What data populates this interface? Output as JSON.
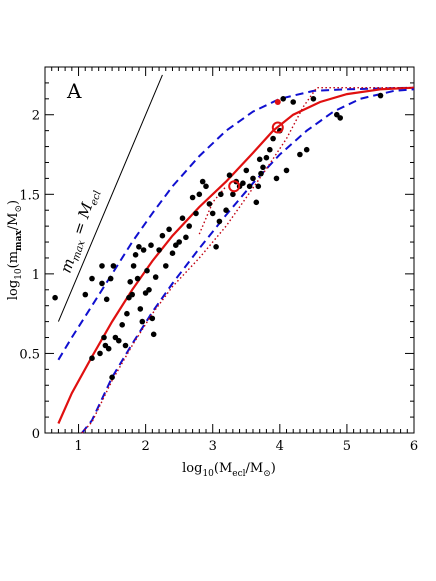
{
  "chart_data": {
    "type": "scatter",
    "panel_label": "A",
    "xlabel": {
      "pre": "log",
      "pre_sub": "10",
      "mid": "(M",
      "mid_sub": "ecl",
      "post": "/M",
      "post_sub": "⊙",
      "end": ")"
    },
    "ylabel": {
      "pre": "log",
      "pre_sub": "10",
      "mid": "(m",
      "mid_sub": "max",
      "post": "/M",
      "post_sub": "⊙",
      "end": ")"
    },
    "xlim": [
      0.5,
      6
    ],
    "ylim": [
      0,
      2.3
    ],
    "x_ticks": [
      1,
      2,
      3,
      4,
      5,
      6
    ],
    "y_ticks": [
      0,
      0.5,
      1,
      1.5,
      2
    ],
    "x_tick_labels": [
      "1",
      "2",
      "3",
      "4",
      "5",
      "6"
    ],
    "y_tick_labels": [
      "0",
      "0.5",
      "1",
      "1.5",
      "2"
    ],
    "reference_line": {
      "label": {
        "m": "m",
        "m_sub": "max",
        "eq": " = ",
        "M": "M",
        "M_sub": "ecl"
      },
      "points": [
        [
          0.7,
          0.7
        ],
        [
          2.25,
          2.25
        ]
      ],
      "color": "#000000"
    },
    "curves": [
      {
        "id": "upper-dashed",
        "style": "dashed",
        "color": "#1010d0",
        "points": [
          [
            0.7,
            0.46
          ],
          [
            0.9,
            0.6
          ],
          [
            1.2,
            0.8
          ],
          [
            1.5,
            1.0
          ],
          [
            1.8,
            1.2
          ],
          [
            2.1,
            1.38
          ],
          [
            2.4,
            1.55
          ],
          [
            2.8,
            1.74
          ],
          [
            3.2,
            1.9
          ],
          [
            3.6,
            2.02
          ],
          [
            4.0,
            2.1
          ],
          [
            4.5,
            2.15
          ],
          [
            5.0,
            2.16
          ],
          [
            6.0,
            2.17
          ]
        ]
      },
      {
        "id": "median-solid",
        "style": "solid",
        "color": "#e01010",
        "points": [
          [
            0.7,
            0.06
          ],
          [
            0.9,
            0.25
          ],
          [
            1.2,
            0.48
          ],
          [
            1.5,
            0.7
          ],
          [
            1.8,
            0.9
          ],
          [
            2.1,
            1.08
          ],
          [
            2.4,
            1.24
          ],
          [
            2.8,
            1.42
          ],
          [
            3.2,
            1.58
          ],
          [
            3.6,
            1.76
          ],
          [
            3.9,
            1.9
          ],
          [
            4.2,
            2.0
          ],
          [
            4.6,
            2.08
          ],
          [
            5.0,
            2.13
          ],
          [
            5.5,
            2.16
          ],
          [
            6.0,
            2.17
          ]
        ]
      },
      {
        "id": "lower-dashed",
        "style": "dashed",
        "color": "#1010d0",
        "points": [
          [
            1.05,
            0.0
          ],
          [
            1.2,
            0.08
          ],
          [
            1.5,
            0.35
          ],
          [
            1.8,
            0.56
          ],
          [
            2.1,
            0.76
          ],
          [
            2.4,
            0.94
          ],
          [
            2.8,
            1.16
          ],
          [
            3.2,
            1.37
          ],
          [
            3.6,
            1.57
          ],
          [
            4.0,
            1.75
          ],
          [
            4.4,
            1.9
          ],
          [
            4.8,
            2.02
          ],
          [
            5.2,
            2.1
          ],
          [
            5.7,
            2.15
          ],
          [
            6.0,
            2.16
          ]
        ]
      },
      {
        "id": "lower-dotted",
        "style": "dotted",
        "color": "#c00010",
        "points": [
          [
            1.05,
            0.0
          ],
          [
            1.2,
            0.07
          ],
          [
            1.5,
            0.33
          ],
          [
            1.8,
            0.55
          ],
          [
            2.1,
            0.75
          ],
          [
            2.4,
            0.92
          ],
          [
            2.8,
            1.1
          ],
          [
            3.2,
            1.3
          ],
          [
            3.5,
            1.48
          ],
          [
            3.8,
            1.66
          ],
          [
            4.1,
            1.85
          ],
          [
            4.35,
            2.05
          ],
          [
            4.55,
            2.17
          ],
          [
            5.0,
            2.17
          ],
          [
            6.0,
            2.17
          ]
        ]
      },
      {
        "id": "upper-dotted",
        "style": "dotted",
        "color": "#c00010",
        "points": [
          [
            2.8,
            1.25
          ],
          [
            3.0,
            1.45
          ],
          [
            3.2,
            1.55
          ]
        ]
      }
    ],
    "marked_points": [
      {
        "x": 3.32,
        "y": 1.55,
        "open": true,
        "r": 5
      },
      {
        "x": 3.97,
        "y": 1.92,
        "open": true,
        "r": 5
      },
      {
        "x": 3.97,
        "y": 2.08,
        "open": false,
        "r": 3
      }
    ],
    "points": [
      [
        0.65,
        0.85
      ],
      [
        1.1,
        0.87
      ],
      [
        1.2,
        0.97
      ],
      [
        1.35,
        0.94
      ],
      [
        1.35,
        1.05
      ],
      [
        1.42,
        0.84
      ],
      [
        1.48,
        0.97
      ],
      [
        1.52,
        1.05
      ],
      [
        1.2,
        0.47
      ],
      [
        1.32,
        0.5
      ],
      [
        1.38,
        0.6
      ],
      [
        1.4,
        0.55
      ],
      [
        1.45,
        0.53
      ],
      [
        1.5,
        0.35
      ],
      [
        1.55,
        0.6
      ],
      [
        1.6,
        0.58
      ],
      [
        1.65,
        0.68
      ],
      [
        1.7,
        0.55
      ],
      [
        1.72,
        0.75
      ],
      [
        1.75,
        0.85
      ],
      [
        1.77,
        0.95
      ],
      [
        1.8,
        0.87
      ],
      [
        1.82,
        1.05
      ],
      [
        1.85,
        1.12
      ],
      [
        1.88,
        0.97
      ],
      [
        1.9,
        1.17
      ],
      [
        1.92,
        0.78
      ],
      [
        1.95,
        0.7
      ],
      [
        1.97,
        1.15
      ],
      [
        2.0,
        0.88
      ],
      [
        2.02,
        1.02
      ],
      [
        2.05,
        0.9
      ],
      [
        2.08,
        1.18
      ],
      [
        2.1,
        0.72
      ],
      [
        2.12,
        0.62
      ],
      [
        2.15,
        0.98
      ],
      [
        2.2,
        1.15
      ],
      [
        2.25,
        1.24
      ],
      [
        2.3,
        1.05
      ],
      [
        2.35,
        1.28
      ],
      [
        2.4,
        1.13
      ],
      [
        2.45,
        1.18
      ],
      [
        2.5,
        1.2
      ],
      [
        2.55,
        1.35
      ],
      [
        2.6,
        1.23
      ],
      [
        2.65,
        1.3
      ],
      [
        2.7,
        1.48
      ],
      [
        2.75,
        1.38
      ],
      [
        2.8,
        1.5
      ],
      [
        2.85,
        1.58
      ],
      [
        2.9,
        1.55
      ],
      [
        2.95,
        1.44
      ],
      [
        3.0,
        1.38
      ],
      [
        3.05,
        1.17
      ],
      [
        3.1,
        1.33
      ],
      [
        3.12,
        1.5
      ],
      [
        3.2,
        1.4
      ],
      [
        3.25,
        1.62
      ],
      [
        3.3,
        1.5
      ],
      [
        3.35,
        1.58
      ],
      [
        3.4,
        1.55
      ],
      [
        3.45,
        1.57
      ],
      [
        3.5,
        1.65
      ],
      [
        3.55,
        1.55
      ],
      [
        3.6,
        1.6
      ],
      [
        3.65,
        1.45
      ],
      [
        3.68,
        1.55
      ],
      [
        3.7,
        1.72
      ],
      [
        3.72,
        1.63
      ],
      [
        3.75,
        1.67
      ],
      [
        3.8,
        1.73
      ],
      [
        3.85,
        1.78
      ],
      [
        3.9,
        1.85
      ],
      [
        3.95,
        1.6
      ],
      [
        4.0,
        1.9
      ],
      [
        4.05,
        2.1
      ],
      [
        4.1,
        1.65
      ],
      [
        4.2,
        2.08
      ],
      [
        4.3,
        1.75
      ],
      [
        4.4,
        1.78
      ],
      [
        4.5,
        2.1
      ],
      [
        4.85,
        2.0
      ],
      [
        4.9,
        1.98
      ],
      [
        5.5,
        2.12
      ]
    ]
  }
}
